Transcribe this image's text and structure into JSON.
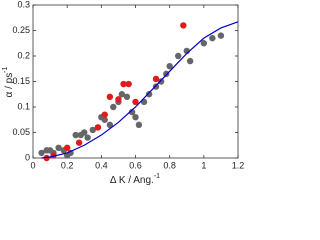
{
  "chart_data": {
    "type": "scatter",
    "xlabel": "Δ K / Ang.",
    "xlabel_sup": "-1",
    "ylabel": "α / ps",
    "ylabel_sup": "-1",
    "xlim": [
      0,
      1.2
    ],
    "xticks": [
      0,
      0.2,
      0.4,
      0.6,
      0.8,
      1,
      1.2
    ],
    "ylim": [
      0,
      0.3
    ],
    "yticks": [
      0,
      0.05,
      0.1,
      0.15,
      0.2,
      0.25,
      0.3
    ],
    "grid": false,
    "series": [
      {
        "mode": "markers",
        "color": "#666666",
        "x": [
          0.05,
          0.08,
          0.1,
          0.12,
          0.15,
          0.18,
          0.2,
          0.22,
          0.25,
          0.28,
          0.3,
          0.32,
          0.35,
          0.38,
          0.4,
          0.42,
          0.45,
          0.47,
          0.5,
          0.52,
          0.55,
          0.58,
          0.6,
          0.62,
          0.65,
          0.68,
          0.72,
          0.75,
          0.78,
          0.8,
          0.85,
          0.9,
          0.92,
          1.0,
          1.05,
          1.1
        ],
        "values": [
          0.01,
          0.015,
          0.015,
          0.01,
          0.02,
          0.015,
          0.005,
          0.01,
          0.045,
          0.045,
          0.05,
          0.04,
          0.055,
          0.06,
          0.08,
          0.075,
          0.065,
          0.1,
          0.11,
          0.125,
          0.12,
          0.09,
          0.08,
          0.065,
          0.11,
          0.125,
          0.14,
          0.15,
          0.165,
          0.18,
          0.2,
          0.21,
          0.19,
          0.225,
          0.235,
          0.24
        ]
      },
      {
        "mode": "markers",
        "color": "#e31a1c",
        "x": [
          0.08,
          0.12,
          0.2,
          0.27,
          0.38,
          0.42,
          0.45,
          0.5,
          0.53,
          0.56,
          0.6,
          0.72,
          0.88
        ],
        "values": [
          0.0,
          0.005,
          0.02,
          0.03,
          0.06,
          0.085,
          0.12,
          0.115,
          0.145,
          0.145,
          0.11,
          0.155,
          0.26
        ]
      },
      {
        "mode": "line",
        "color": "#0000cc",
        "x": [
          0.05,
          0.1,
          0.2,
          0.3,
          0.4,
          0.5,
          0.6,
          0.7,
          0.8,
          0.9,
          1.0,
          1.1,
          1.2
        ],
        "values": [
          0,
          0.002,
          0.01,
          0.025,
          0.045,
          0.07,
          0.1,
          0.135,
          0.17,
          0.205,
          0.235,
          0.255,
          0.267
        ]
      }
    ]
  }
}
